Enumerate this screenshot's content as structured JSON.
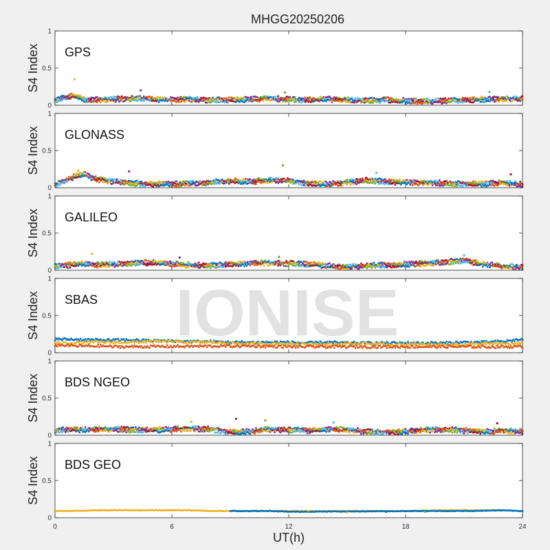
{
  "chart_data": {
    "type": "scatter",
    "title": "MHGG20250206",
    "xlabel": "UT(h)",
    "ylabel": "S4 Index",
    "xlim": [
      0,
      24
    ],
    "ylim": [
      0,
      1
    ],
    "xticks": [
      0,
      6,
      12,
      18,
      24
    ],
    "yticks": [
      0,
      0.5,
      1
    ],
    "watermark": "IONISE",
    "panels": [
      {
        "label": "GPS",
        "colors": [
          "#0072BD",
          "#D95319",
          "#EDB120",
          "#7E2F8E",
          "#77AC30",
          "#4DBEEE",
          "#A2142F"
        ],
        "series": [
          {
            "x": [
              0,
              0.5,
              1,
              1.5,
              2,
              3,
              4,
              5,
              6,
              7,
              8,
              9,
              10,
              11,
              12,
              13,
              14,
              15,
              16,
              17,
              18,
              19,
              20,
              21,
              22,
              23,
              24
            ],
            "y": [
              0.08,
              0.12,
              0.15,
              0.1,
              0.09,
              0.1,
              0.11,
              0.1,
              0.09,
              0.1,
              0.09,
              0.09,
              0.1,
              0.11,
              0.1,
              0.09,
              0.1,
              0.09,
              0.08,
              0.09,
              0.08,
              0.07,
              0.08,
              0.09,
              0.1,
              0.1,
              0.11
            ]
          },
          {
            "x": [
              1.0,
              4.4,
              11.8,
              22.3
            ],
            "y": [
              0.35,
              0.2,
              0.17,
              0.18
            ]
          }
        ]
      },
      {
        "label": "GLONASS",
        "colors": [
          "#0072BD",
          "#D95319",
          "#EDB120",
          "#7E2F8E",
          "#77AC30",
          "#4DBEEE",
          "#A2142F"
        ],
        "series": [
          {
            "x": [
              0,
              0.5,
              1,
              1.5,
              2,
              3,
              4,
              5,
              6,
              7,
              8,
              9,
              10,
              11,
              12,
              13,
              14,
              15,
              16,
              17,
              18,
              19,
              20,
              21,
              22,
              23,
              24
            ],
            "y": [
              0.06,
              0.1,
              0.17,
              0.2,
              0.14,
              0.1,
              0.08,
              0.07,
              0.07,
              0.08,
              0.09,
              0.11,
              0.1,
              0.12,
              0.11,
              0.08,
              0.07,
              0.09,
              0.12,
              0.1,
              0.09,
              0.09,
              0.08,
              0.07,
              0.07,
              0.09,
              0.06
            ]
          },
          {
            "x": [
              1.2,
              3.8,
              11.7,
              16.5,
              23.4
            ],
            "y": [
              0.23,
              0.22,
              0.3,
              0.2,
              0.18
            ]
          }
        ]
      },
      {
        "label": "GALILEO",
        "colors": [
          "#0072BD",
          "#D95319",
          "#EDB120",
          "#7E2F8E",
          "#77AC30",
          "#4DBEEE",
          "#A2142F"
        ],
        "series": [
          {
            "x": [
              0,
              0.5,
              1,
              1.5,
              2,
              3,
              4,
              5,
              6,
              7,
              8,
              9,
              10,
              11,
              12,
              13,
              14,
              15,
              16,
              17,
              18,
              19,
              20,
              21,
              22,
              23,
              24
            ],
            "y": [
              0.07,
              0.08,
              0.1,
              0.11,
              0.09,
              0.1,
              0.11,
              0.12,
              0.1,
              0.09,
              0.08,
              0.1,
              0.11,
              0.12,
              0.11,
              0.1,
              0.08,
              0.06,
              0.08,
              0.09,
              0.1,
              0.11,
              0.13,
              0.15,
              0.1,
              0.07,
              0.06
            ]
          },
          {
            "x": [
              1.9,
              6.4,
              11.5,
              21.0
            ],
            "y": [
              0.22,
              0.17,
              0.18,
              0.2
            ]
          }
        ]
      },
      {
        "label": "SBAS",
        "colors": [
          "#0072BD",
          "#EDB120",
          "#D95319"
        ],
        "series": [
          {
            "x": [
              0,
              1,
              2,
              3,
              4,
              5,
              6,
              7,
              8,
              9,
              10,
              11,
              12,
              13,
              14,
              15,
              16,
              17,
              18,
              19,
              20,
              21,
              22,
              23,
              24
            ],
            "y": [
              0.18,
              0.18,
              0.17,
              0.17,
              0.17,
              0.16,
              0.16,
              0.15,
              0.15,
              0.14,
              0.14,
              0.14,
              0.14,
              0.13,
              0.14,
              0.13,
              0.13,
              0.13,
              0.13,
              0.13,
              0.13,
              0.14,
              0.14,
              0.15,
              0.18
            ]
          },
          {
            "x": [
              0,
              1,
              2,
              3,
              4,
              5,
              6,
              7,
              8,
              9,
              10,
              11,
              12,
              13,
              14,
              15,
              16,
              17,
              18,
              19,
              20,
              21,
              22,
              23,
              24
            ],
            "y": [
              0.13,
              0.13,
              0.14,
              0.14,
              0.14,
              0.15,
              0.15,
              0.14,
              0.14,
              0.13,
              0.12,
              0.12,
              0.12,
              0.12,
              0.11,
              0.12,
              0.12,
              0.11,
              0.11,
              0.11,
              0.11,
              0.11,
              0.12,
              0.12,
              0.12
            ]
          },
          {
            "x": [
              0,
              0.5,
              1,
              1.5,
              2,
              2.5,
              3,
              10,
              12,
              14,
              16,
              18,
              20,
              22,
              24
            ],
            "y": [
              0.1,
              0.1,
              0.09,
              0.09,
              0.09,
              0.09,
              0.08,
              0.09,
              0.08,
              0.08,
              0.08,
              0.08,
              0.08,
              0.08,
              0.08
            ]
          }
        ]
      },
      {
        "label": "BDS NGEO",
        "colors": [
          "#0072BD",
          "#D95319",
          "#EDB120",
          "#7E2F8E",
          "#77AC30",
          "#4DBEEE",
          "#A2142F"
        ],
        "series": [
          {
            "x": [
              0,
              0.5,
              1,
              1.5,
              2,
              3,
              4,
              5,
              6,
              7,
              8,
              9,
              10,
              11,
              12,
              13,
              14,
              15,
              16,
              17,
              18,
              19,
              20,
              21,
              22,
              23,
              24
            ],
            "y": [
              0.08,
              0.09,
              0.1,
              0.09,
              0.1,
              0.1,
              0.09,
              0.09,
              0.1,
              0.11,
              0.1,
              0.06,
              0.07,
              0.1,
              0.09,
              0.08,
              0.1,
              0.09,
              0.07,
              0.06,
              0.07,
              0.09,
              0.1,
              0.08,
              0.07,
              0.08,
              0.07
            ]
          },
          {
            "x": [
              7.0,
              9.3,
              10.8,
              14.3,
              22.7
            ],
            "y": [
              0.18,
              0.22,
              0.2,
              0.17,
              0.16
            ]
          }
        ]
      },
      {
        "label": "BDS GEO",
        "colors": [
          "#EDB120",
          "#0072BD",
          "#77AC30"
        ],
        "series": [
          {
            "x": [
              0,
              1,
              2,
              3,
              4,
              5,
              6,
              7,
              8,
              12.5,
              14,
              16,
              18,
              20,
              22,
              23
            ],
            "y": [
              0.09,
              0.09,
              0.1,
              0.1,
              0.1,
              0.1,
              0.1,
              0.1,
              0.09,
              0.09,
              0.09,
              0.09,
              0.09,
              0.1,
              0.1,
              0.1
            ]
          },
          {
            "x": [
              9,
              10,
              11,
              12,
              12.5,
              18.5,
              20,
              21.5,
              23,
              24
            ],
            "y": [
              0.09,
              0.09,
              0.09,
              0.08,
              0.08,
              0.09,
              0.09,
              0.09,
              0.1,
              0.09
            ]
          },
          {
            "x": [
              13,
              15,
              17,
              19
            ],
            "y": [
              0.08,
              0.07,
              0.08,
              0.08
            ]
          }
        ]
      }
    ]
  }
}
